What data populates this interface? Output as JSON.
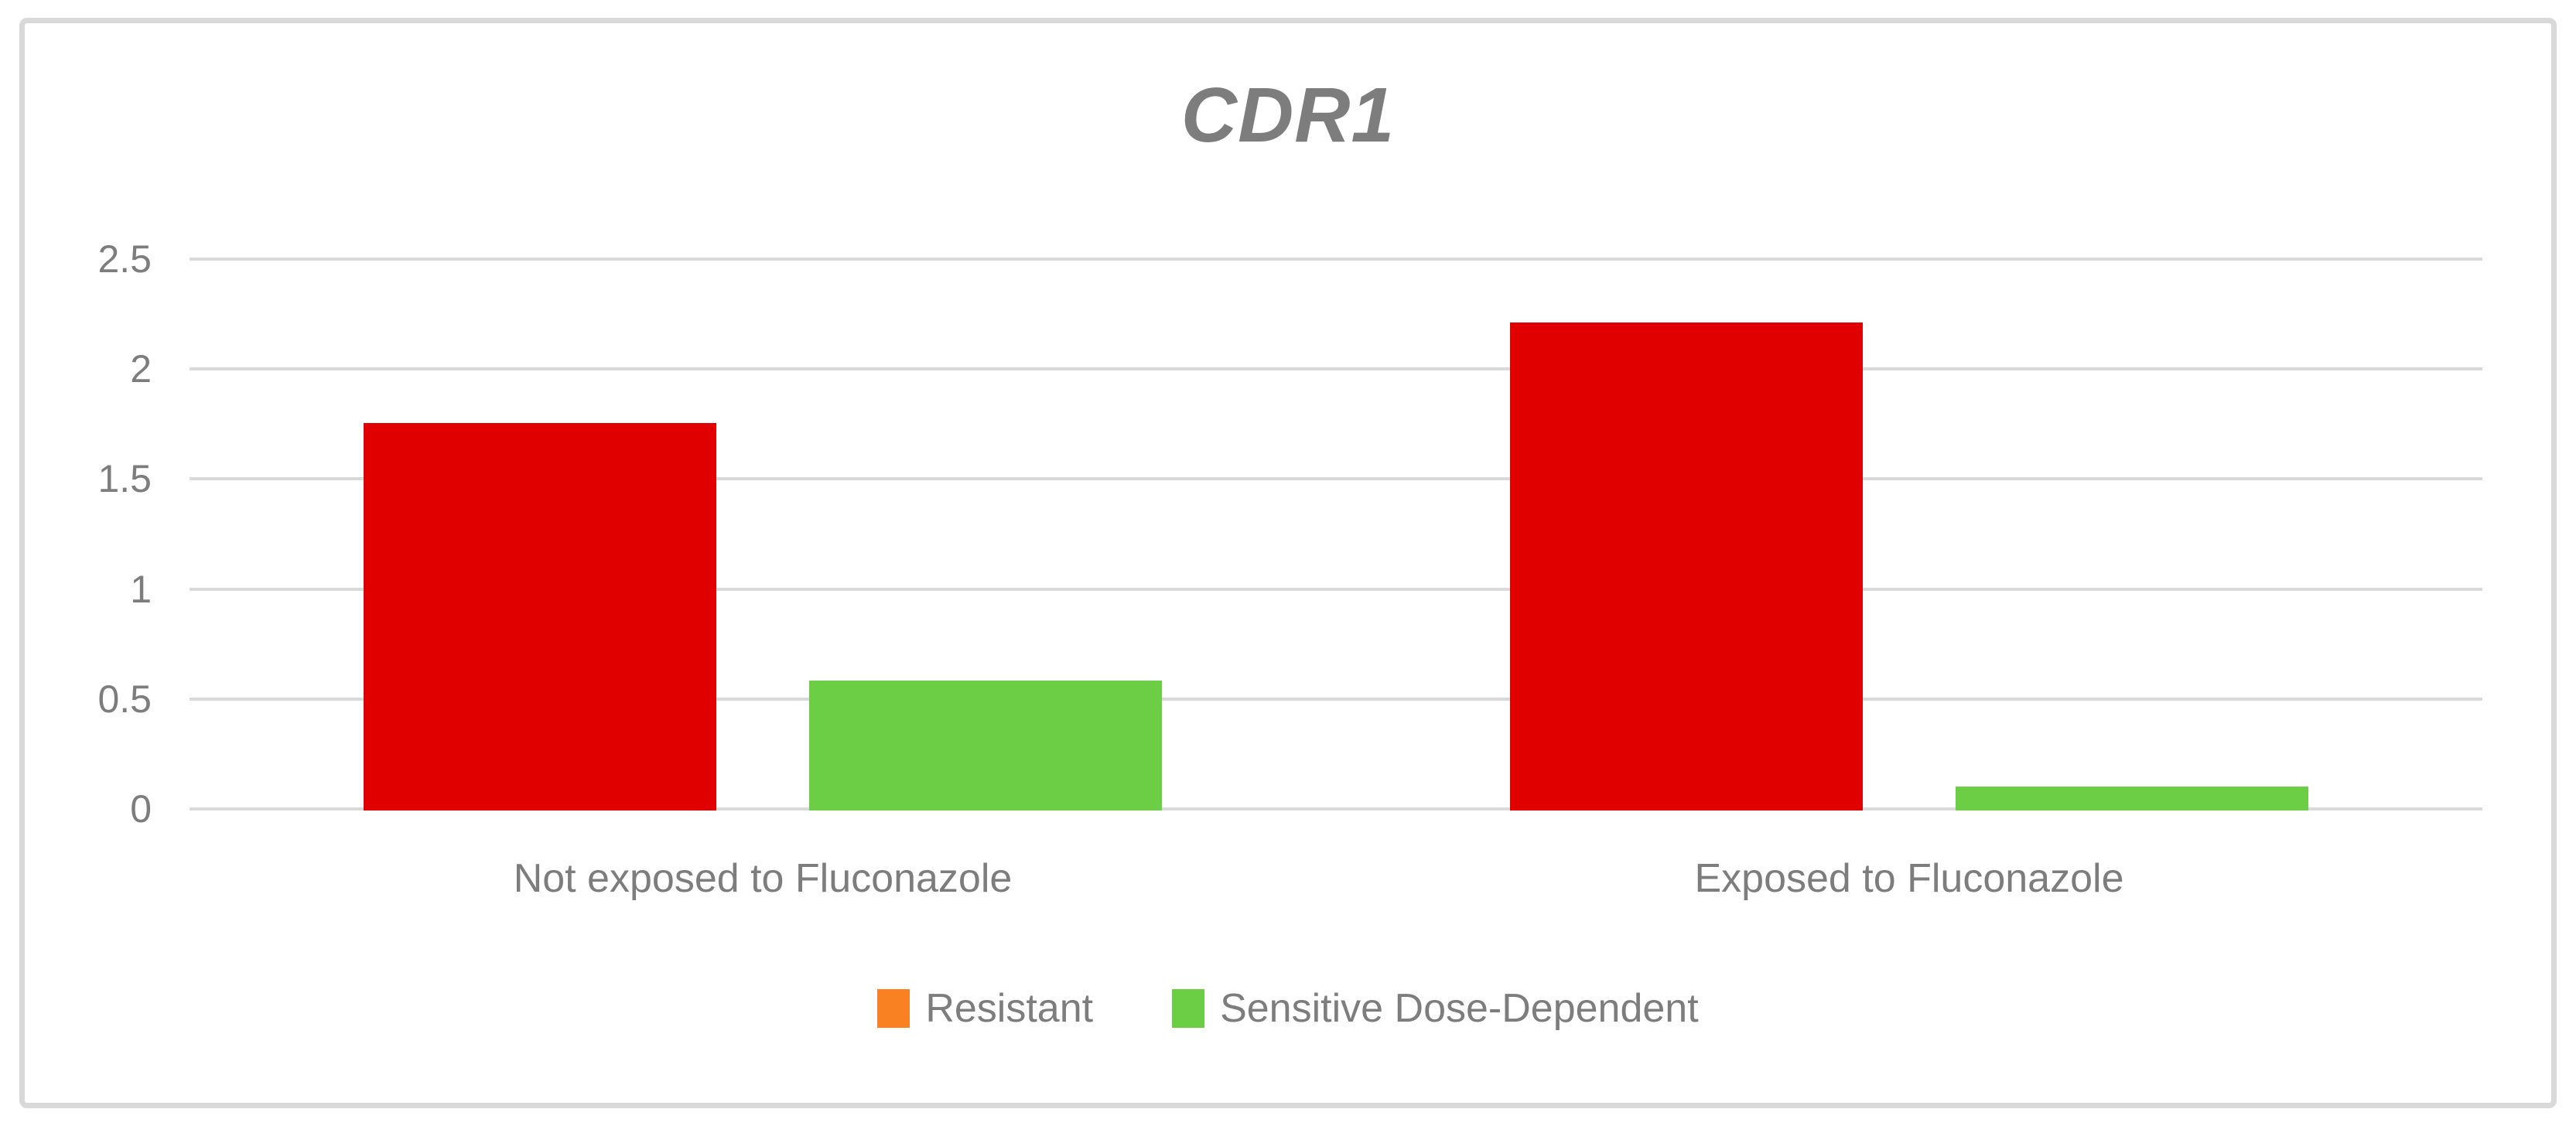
{
  "chart_data": {
    "type": "bar",
    "title": "CDR1",
    "categories": [
      "Not exposed to Fluconazole",
      "Exposed to Fluconazole"
    ],
    "series": [
      {
        "name": "Resistant",
        "values": [
          1.76,
          2.22
        ],
        "bar_color": "#E00000",
        "legend_swatch_color": "#FA8122"
      },
      {
        "name": "Sensitive Dose-Dependent",
        "values": [
          0.59,
          0.11
        ],
        "bar_color": "#6CCE44",
        "legend_swatch_color": "#6CCE44"
      }
    ],
    "xlabel": "",
    "ylabel": "",
    "ylim": [
      0,
      2.5
    ],
    "yticks": [
      "0",
      "0.5",
      "1",
      "1.5",
      "2",
      "2.5"
    ],
    "grid": "horizontal",
    "legend_position": "bottom",
    "colors": {
      "gridline": "#D9D9D9",
      "figure_border": "#D9D9D9",
      "text": "#7D7D7D"
    }
  }
}
